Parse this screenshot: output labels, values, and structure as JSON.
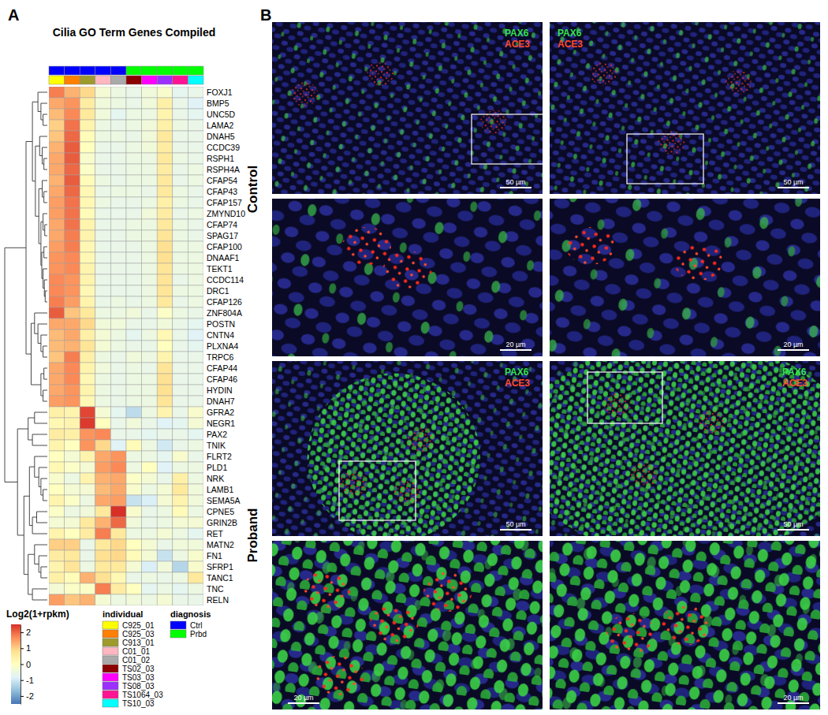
{
  "figure": {
    "panel_labels": [
      "A",
      "B"
    ]
  },
  "chart_data": {
    "type": "heatmap",
    "title": "Cilia GO Term Genes Compiled",
    "rows": [
      "FOXJ1",
      "BMP5",
      "UNC5D",
      "LAMA2",
      "DNAH5",
      "CCDC39",
      "RSPH1",
      "RSPH4A",
      "CFAP54",
      "CFAP43",
      "CFAP157",
      "ZMYND10",
      "CFAP74",
      "SPAG17",
      "CFAP100",
      "DNAAF1",
      "TEKT1",
      "CCDC114",
      "DRC1",
      "CFAP126",
      "ZNF804A",
      "POSTN",
      "CNTN4",
      "PLXNA4",
      "TRPC6",
      "CFAP44",
      "CFAP46",
      "HYDIN",
      "DNAH7",
      "GFRA2",
      "NEGR1",
      "PAX2",
      "TNIK",
      "FLRT2",
      "PLD1",
      "NRK",
      "LAMB1",
      "SEMA5A",
      "CPNE5",
      "GRIN2B",
      "RET",
      "MATN2",
      "FN1",
      "SFRP1",
      "TANC1",
      "TNC",
      "RELN"
    ],
    "columns": [
      "C925_01",
      "C925_03",
      "C913_01",
      "C01_01",
      "C01_02",
      "TS02_03",
      "TS03_03",
      "TS08_03",
      "TS1064_03",
      "TS10_03"
    ],
    "values": [
      [
        1.8,
        1.3,
        0.9,
        -0.3,
        -0.5,
        -0.6,
        -0.4,
        -0.2,
        -0.7,
        -0.6
      ],
      [
        1.4,
        1.6,
        0.5,
        -0.4,
        -0.5,
        -0.6,
        -0.4,
        0.4,
        -0.6,
        -0.8
      ],
      [
        1.2,
        1.7,
        0.6,
        -0.4,
        -0.7,
        -0.5,
        -0.5,
        0.3,
        -0.6,
        -0.7
      ],
      [
        1.0,
        1.9,
        0.3,
        -0.5,
        -0.6,
        -0.5,
        -0.4,
        0.4,
        -0.5,
        -0.6
      ],
      [
        1.1,
        2.0,
        0.1,
        -0.5,
        -0.5,
        -0.6,
        -0.4,
        0.6,
        -0.6,
        -0.6
      ],
      [
        1.3,
        2.1,
        0.0,
        -0.6,
        -0.6,
        -0.5,
        -0.4,
        0.5,
        -0.6,
        -0.6
      ],
      [
        1.4,
        2.1,
        -0.2,
        -0.6,
        -0.6,
        -0.5,
        -0.5,
        0.6,
        -0.5,
        -0.6
      ],
      [
        1.4,
        2.0,
        -0.1,
        -0.6,
        -0.6,
        -0.5,
        -0.5,
        0.5,
        -0.6,
        -0.5
      ],
      [
        1.3,
        2.1,
        0.1,
        -0.5,
        -0.6,
        -0.5,
        -0.5,
        0.6,
        -0.6,
        -0.5
      ],
      [
        1.4,
        2.0,
        0.2,
        -0.6,
        -0.5,
        -0.5,
        -0.6,
        0.6,
        -0.5,
        -0.6
      ],
      [
        1.5,
        1.9,
        0.2,
        -0.5,
        -0.6,
        -0.6,
        -0.5,
        0.4,
        -0.5,
        -0.6
      ],
      [
        1.5,
        1.9,
        0.1,
        -0.6,
        -0.6,
        -0.6,
        -0.4,
        0.5,
        -0.6,
        -0.5
      ],
      [
        1.4,
        1.9,
        0.3,
        -0.6,
        -0.6,
        -0.5,
        -0.5,
        0.6,
        -0.5,
        -0.6
      ],
      [
        1.4,
        1.8,
        0.3,
        -0.6,
        -0.6,
        -0.5,
        -0.5,
        0.7,
        -0.5,
        -0.6
      ],
      [
        1.5,
        1.8,
        0.2,
        -0.6,
        -0.6,
        -0.6,
        -0.5,
        0.8,
        -0.5,
        -0.5
      ],
      [
        1.6,
        1.7,
        0.2,
        -0.6,
        -0.6,
        -0.6,
        -0.5,
        0.8,
        -0.5,
        -0.5
      ],
      [
        1.6,
        1.7,
        0.3,
        -0.6,
        -0.6,
        -0.6,
        -0.5,
        0.7,
        -0.5,
        -0.5
      ],
      [
        1.7,
        1.6,
        0.3,
        -0.6,
        -0.6,
        -0.6,
        -0.5,
        0.7,
        -0.6,
        -0.5
      ],
      [
        1.7,
        1.6,
        0.2,
        -0.6,
        -0.6,
        -0.6,
        -0.5,
        0.7,
        -0.5,
        -0.5
      ],
      [
        1.8,
        1.5,
        0.3,
        -0.6,
        -0.5,
        -0.6,
        -0.5,
        0.6,
        -0.6,
        -0.5
      ],
      [
        2.1,
        1.1,
        0.6,
        -0.5,
        -0.5,
        -0.4,
        -0.6,
        -0.1,
        -0.5,
        -0.6
      ],
      [
        1.4,
        1.4,
        0.9,
        -0.4,
        -0.4,
        -0.6,
        -0.6,
        -0.4,
        -0.6,
        -0.7
      ],
      [
        1.2,
        1.4,
        0.4,
        -0.3,
        -0.5,
        -0.7,
        -0.5,
        0.2,
        -0.6,
        -0.8
      ],
      [
        1.2,
        1.3,
        0.7,
        -0.3,
        -0.5,
        -0.6,
        -0.6,
        0.0,
        -0.6,
        -0.7
      ],
      [
        1.1,
        1.8,
        0.4,
        -0.5,
        -0.6,
        -0.4,
        -0.5,
        0.3,
        -0.6,
        -0.6
      ],
      [
        1.4,
        1.7,
        0.3,
        -0.4,
        -0.6,
        -0.5,
        -0.6,
        0.7,
        -0.6,
        -0.6
      ],
      [
        1.4,
        1.7,
        0.2,
        -0.5,
        -0.6,
        -0.5,
        -0.5,
        0.8,
        -0.6,
        -0.6
      ],
      [
        1.4,
        1.6,
        0.3,
        -0.5,
        -0.6,
        -0.5,
        -0.5,
        0.8,
        -0.6,
        -0.6
      ],
      [
        1.5,
        1.6,
        0.2,
        -0.5,
        -0.6,
        -0.5,
        -0.5,
        0.7,
        -0.6,
        -0.6
      ],
      [
        0.4,
        0.3,
        2.3,
        -0.3,
        -0.7,
        -1.2,
        -0.5,
        0.3,
        -0.6,
        -0.2
      ],
      [
        0.2,
        0.3,
        2.4,
        0.0,
        -0.6,
        -0.4,
        -0.6,
        -0.8,
        -0.7,
        -0.3
      ],
      [
        0.5,
        0.4,
        1.6,
        1.7,
        -0.6,
        -0.6,
        -0.7,
        -0.6,
        -0.6,
        -0.7
      ],
      [
        0.3,
        0.0,
        1.6,
        0.9,
        -0.8,
        0.1,
        -0.5,
        -1.0,
        -0.6,
        -0.5
      ],
      [
        0.0,
        -0.3,
        0.3,
        1.4,
        1.6,
        -0.5,
        -0.5,
        -0.7,
        -0.2,
        -0.6
      ],
      [
        0.2,
        -0.1,
        -0.3,
        1.5,
        1.7,
        -0.5,
        0.0,
        -0.8,
        -0.5,
        -0.5
      ],
      [
        -0.2,
        -0.5,
        0.3,
        1.3,
        1.4,
        -0.1,
        -0.3,
        -0.6,
        0.4,
        -0.5
      ],
      [
        0.0,
        -0.3,
        -0.3,
        1.2,
        1.4,
        -0.2,
        -0.5,
        -0.3,
        0.6,
        -0.4
      ],
      [
        0.3,
        -0.1,
        -0.5,
        1.4,
        1.5,
        -1.1,
        -0.9,
        -0.3,
        0.3,
        -0.4
      ],
      [
        -0.1,
        -0.5,
        -0.4,
        0.6,
        2.6,
        -0.2,
        -0.6,
        -0.5,
        0.1,
        -0.5
      ],
      [
        -0.3,
        -0.3,
        0.6,
        1.3,
        2.0,
        -0.4,
        -0.6,
        -0.5,
        -0.3,
        -0.3
      ],
      [
        0.3,
        0.0,
        0.5,
        1.8,
        0.6,
        -0.5,
        -0.5,
        -0.3,
        -0.5,
        -0.7
      ],
      [
        1.0,
        1.0,
        -0.6,
        0.6,
        0.9,
        0.0,
        -0.3,
        -0.6,
        -0.4,
        -0.4
      ],
      [
        0.5,
        0.6,
        -0.6,
        0.8,
        0.9,
        0.1,
        -0.3,
        -1.1,
        -0.5,
        -0.2
      ],
      [
        0.3,
        0.7,
        -0.5,
        0.6,
        0.6,
        -0.3,
        -0.9,
        -0.4,
        -1.3,
        -0.2
      ],
      [
        0.4,
        0.1,
        1.3,
        0.8,
        0.2,
        -0.6,
        -0.5,
        -0.6,
        -0.5,
        0.6
      ],
      [
        -0.3,
        -0.1,
        -0.1,
        1.8,
        0.5,
        0.0,
        -0.7,
        -0.5,
        -0.7,
        -0.5
      ],
      [
        1.5,
        1.1,
        1.3,
        -0.3,
        -0.5,
        -0.4,
        -0.5,
        -0.3,
        -0.6,
        -0.6
      ]
    ],
    "colorbar": {
      "title": "Log2(1+rpkm)",
      "range": [
        -2.5,
        2.5
      ],
      "ticks": [
        2,
        1,
        0,
        -1,
        -2
      ],
      "colors": [
        "#4575b4",
        "#91bfdb",
        "#e0f3f8",
        "#ffffbf",
        "#fee090",
        "#fc8d59",
        "#d73027"
      ]
    },
    "annotations": {
      "individual": {
        "title": "individual",
        "colors": [
          "#ffff00",
          "#ff7f00",
          "#9e9a2c",
          "#ffb6c1",
          "#aaaaaa",
          "#8b0000",
          "#ff00ff",
          "#9b30ff",
          "#ff1493",
          "#00ffff"
        ]
      },
      "diagnosis": {
        "title": "diagnosis",
        "categories": [
          "Ctrl",
          "Prbd"
        ],
        "colors": [
          "#0000ff",
          "#00ff00"
        ],
        "values": [
          "Ctrl",
          "Ctrl",
          "Ctrl",
          "Ctrl",
          "Ctrl",
          "Prbd",
          "Prbd",
          "Prbd",
          "Prbd",
          "Prbd"
        ]
      }
    },
    "row_dendrogram": {
      "height": 1.0,
      "children": [
        {
          "height": 0.5,
          "children": [
            {
              "height": 0.35,
              "children": [
                {
                  "height": 0.22,
                  "children": [
                    0,
                    {
                      "height": 0.15,
                      "children": [
                        1,
                        {
                          "height": 0.1,
                          "children": [
                            2,
                            3
                          ]
                        }
                      ]
                    }
                  ]
                },
                {
                  "height": 0.28,
                  "children": [
                    {
                      "height": 0.18,
                      "children": [
                        4,
                        {
                          "height": 0.12,
                          "children": [
                            5,
                            {
                              "height": 0.08,
                              "children": [
                                6,
                                7
                              ]
                            }
                          ]
                        }
                      ]
                    },
                    {
                      "height": 0.2,
                      "children": [
                        {
                          "height": 0.12,
                          "children": [
                            8,
                            {
                              "height": 0.08,
                              "children": [
                                9,
                                10
                              ]
                            }
                          ]
                        },
                        {
                          "height": 0.15,
                          "children": [
                            {
                              "height": 0.1,
                              "children": [
                                11,
                                {
                                  "height": 0.06,
                                  "children": [
                                    12,
                                    13
                                  ]
                                }
                              ]
                            },
                            {
                              "height": 0.13,
                              "children": [
                                {
                                  "height": 0.08,
                                  "children": [
                                    14,
                                    15
                                  ]
                                },
                                {
                                  "height": 0.1,
                                  "children": [
                                    16,
                                    {
                                      "height": 0.07,
                                      "children": [
                                        17,
                                        {
                                          "height": 0.05,
                                          "children": [
                                            18,
                                            19
                                          ]
                                        }
                                      ]
                                    }
                                  ]
                                }
                              ]
                            }
                          ]
                        }
                      ]
                    }
                  ]
                }
              ]
            },
            {
              "height": 0.38,
              "children": [
                {
                  "height": 0.3,
                  "children": [
                    20,
                    {
                      "height": 0.22,
                      "children": [
                        21,
                        {
                          "height": 0.15,
                          "children": [
                            22,
                            {
                              "height": 0.1,
                              "children": [
                                23,
                                24
                              ]
                            }
                          ]
                        }
                      ]
                    }
                  ]
                },
                {
                  "height": 0.15,
                  "children": [
                    {
                      "height": 0.08,
                      "children": [
                        25,
                        26
                      ]
                    },
                    {
                      "height": 0.1,
                      "children": [
                        27,
                        28
                      ]
                    }
                  ]
                }
              ]
            }
          ]
        },
        {
          "height": 0.7,
          "children": [
            {
              "height": 0.45,
              "children": [
                {
                  "height": 0.3,
                  "children": [
                    29,
                    30
                  ]
                },
                {
                  "height": 0.35,
                  "children": [
                    31,
                    32
                  ]
                }
              ]
            },
            {
              "height": 0.55,
              "children": [
                {
                  "height": 0.42,
                  "children": [
                    {
                      "height": 0.3,
                      "children": [
                        33,
                        {
                          "height": 0.2,
                          "children": [
                            34,
                            {
                              "height": 0.15,
                              "children": [
                                35,
                                {
                                  "height": 0.1,
                                  "children": [
                                    36,
                                    37
                                  ]
                                }
                              ]
                            }
                          ]
                        }
                      ]
                    },
                    {
                      "height": 0.35,
                      "children": [
                        {
                          "height": 0.25,
                          "children": [
                            38,
                            39
                          ]
                        },
                        40
                      ]
                    }
                  ]
                },
                {
                  "height": 0.45,
                  "children": [
                    {
                      "height": 0.3,
                      "children": [
                        41,
                        {
                          "height": 0.2,
                          "children": [
                            42,
                            {
                              "height": 0.15,
                              "children": [
                                43,
                                44
                              ]
                            }
                          ]
                        }
                      ]
                    },
                    {
                      "height": 0.35,
                      "children": [
                        45,
                        46
                      ]
                    }
                  ]
                }
              ]
            }
          ]
        }
      ]
    }
  },
  "panel_b": {
    "groups": [
      {
        "label": "Control",
        "images": [
          [
            {
              "stains": [
                "PAX6",
                "ACE3"
              ],
              "scale_bar": "50 µm"
            },
            {
              "stains": [
                "PAX6",
                "ACE3"
              ],
              "scale_bar": "50 µm"
            }
          ],
          [
            {
              "scale_bar": "20 µm"
            },
            {
              "scale_bar": "20 µm"
            }
          ]
        ]
      },
      {
        "label": "Proband",
        "images": [
          [
            {
              "stains": [
                "PAX6",
                "ACE3"
              ],
              "scale_bar": "50 µm"
            },
            {
              "stains": [
                "PAX6",
                "ACE3"
              ],
              "scale_bar": "50 µm"
            }
          ],
          [
            {
              "scale_bar": "20 µm"
            },
            {
              "scale_bar": "20 µm"
            }
          ]
        ]
      }
    ]
  }
}
